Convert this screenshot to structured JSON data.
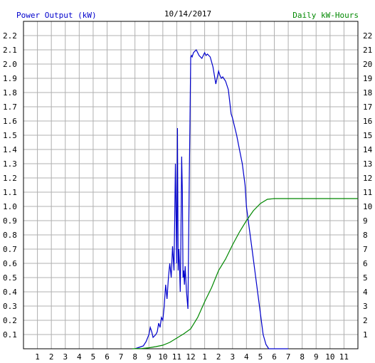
{
  "chart_data": {
    "type": "line",
    "title": "10/14/2017",
    "ylabel_left": "Power Output (kW)",
    "ylabel_right": "Daily kW-Hours",
    "ylim_left": [
      0,
      2.3
    ],
    "ylim_right": [
      0,
      23
    ],
    "xlim": [
      0,
      24
    ],
    "grid": true,
    "x_tick_labels": [
      "1",
      "2",
      "3",
      "4",
      "5",
      "6",
      "7",
      "8",
      "9",
      "10",
      "11",
      "12",
      "1",
      "2",
      "3",
      "4",
      "5",
      "6",
      "7",
      "8",
      "9",
      "10",
      "11"
    ],
    "y_left_ticks": [
      "0.1",
      "0.2",
      "0.3",
      "0.4",
      "0.5",
      "0.6",
      "0.7",
      "0.8",
      "0.9",
      "1.0",
      "1.1",
      "1.2",
      "1.3",
      "1.4",
      "1.5",
      "1.6",
      "1.7",
      "1.8",
      "1.9",
      "2.0",
      "2.1",
      "2.2"
    ],
    "y_right_ticks": [
      "1",
      "2",
      "3",
      "4",
      "5",
      "6",
      "7",
      "8",
      "9",
      "10",
      "11",
      "12",
      "13",
      "14",
      "15",
      "16",
      "17",
      "18",
      "19",
      "20",
      "21",
      "22"
    ],
    "colors": {
      "power": "#0000cc",
      "energy": "#008800",
      "grid": "#b0b0b0",
      "title": "#000000"
    },
    "series": [
      {
        "name": "Power Output (kW)",
        "axis": "left",
        "x": [
          8.0,
          8.3,
          8.6,
          8.8,
          9.0,
          9.1,
          9.2,
          9.3,
          9.5,
          9.6,
          9.7,
          9.8,
          9.9,
          10.0,
          10.1,
          10.2,
          10.3,
          10.4,
          10.5,
          10.6,
          10.7,
          10.8,
          10.85,
          10.9,
          11.0,
          11.05,
          11.1,
          11.15,
          11.2,
          11.25,
          11.3,
          11.35,
          11.4,
          11.45,
          11.5,
          11.55,
          11.6,
          11.7,
          11.8,
          11.9,
          11.95,
          12.0,
          12.05,
          12.1,
          12.2,
          12.4,
          12.6,
          12.8,
          13.0,
          13.1,
          13.2,
          13.4,
          13.6,
          13.8,
          14.0,
          14.1,
          14.2,
          14.3,
          14.5,
          14.7,
          14.9,
          15.0,
          15.1,
          15.3,
          15.5,
          15.7,
          15.9,
          16.0,
          16.2,
          16.4,
          16.6,
          16.8,
          17.0,
          17.2,
          17.4,
          17.6,
          17.8,
          18.0,
          18.2,
          18.4,
          18.6,
          18.8,
          18.9,
          19.0
        ],
        "values": [
          0.0,
          0.01,
          0.02,
          0.05,
          0.1,
          0.15,
          0.12,
          0.08,
          0.1,
          0.12,
          0.18,
          0.15,
          0.22,
          0.2,
          0.3,
          0.45,
          0.35,
          0.5,
          0.6,
          0.5,
          0.72,
          0.55,
          0.9,
          1.3,
          0.6,
          1.55,
          0.55,
          0.7,
          0.58,
          0.4,
          0.8,
          1.35,
          1.1,
          0.5,
          0.55,
          0.45,
          0.58,
          0.4,
          0.28,
          1.2,
          1.6,
          2.05,
          2.06,
          2.05,
          2.08,
          2.1,
          2.06,
          2.04,
          2.08,
          2.06,
          2.07,
          2.05,
          1.98,
          1.86,
          1.95,
          1.92,
          1.9,
          1.91,
          1.88,
          1.82,
          1.65,
          1.62,
          1.58,
          1.5,
          1.4,
          1.3,
          1.15,
          1.0,
          0.85,
          0.7,
          0.55,
          0.4,
          0.25,
          0.1,
          0.03,
          0.0,
          0.0,
          0.0,
          0.0,
          0.0,
          0.0,
          0.0,
          0.0,
          0.0
        ]
      },
      {
        "name": "Daily kW-Hours",
        "axis": "right",
        "x": [
          7.8,
          8.5,
          9.0,
          9.5,
          10.0,
          10.5,
          11.0,
          11.5,
          12.0,
          12.5,
          13.0,
          13.5,
          14.0,
          14.5,
          15.0,
          15.5,
          16.0,
          16.5,
          17.0,
          17.5,
          18.0,
          18.5,
          19.0,
          20.0,
          22.0,
          24.0
        ],
        "values": [
          0.0,
          0.02,
          0.07,
          0.15,
          0.25,
          0.45,
          0.75,
          1.05,
          1.4,
          2.2,
          3.3,
          4.3,
          5.5,
          6.3,
          7.3,
          8.2,
          9.0,
          9.7,
          10.2,
          10.5,
          10.55,
          10.55,
          10.55,
          10.55,
          10.55,
          10.55
        ]
      }
    ]
  }
}
